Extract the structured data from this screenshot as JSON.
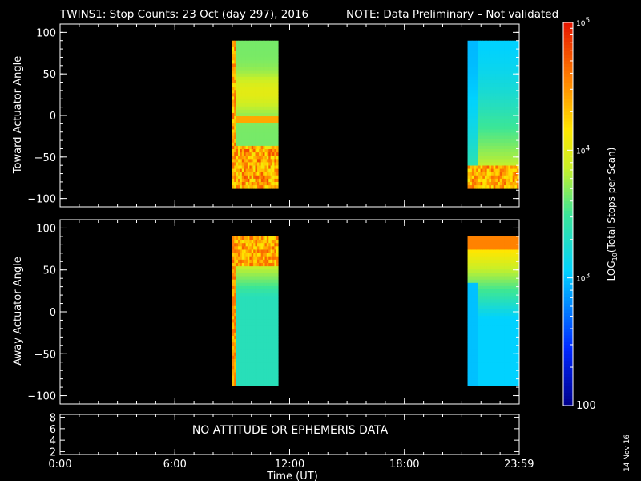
{
  "chart_data": {
    "type": "heatmap",
    "title": "TWINS1: Stop Counts: 23 Oct (day 297), 2016",
    "note": "NOTE: Data Preliminary – Not validated",
    "note_color": "#ff2020",
    "xlabel": "Time (UT)",
    "x_ticks": [
      "0:00",
      "6:00",
      "12:00",
      "18:00",
      "23:59"
    ],
    "xlim_hours": [
      0,
      24
    ],
    "panels": [
      {
        "ylabel": "Toward Actuator Angle",
        "ylim": [
          -110,
          110
        ],
        "y_ticks": [
          "100",
          "50",
          "0",
          "−50",
          "−100"
        ],
        "y_tick_values": [
          100,
          50,
          0,
          -50,
          -100
        ],
        "data_blocks": [
          {
            "t_start": 9.0,
            "t_end": 11.4,
            "angle_min": -88,
            "angle_max": 90
          },
          {
            "t_start": 21.3,
            "t_end": 23.99,
            "angle_min": -88,
            "angle_max": 90
          }
        ]
      },
      {
        "ylabel": "Away Actuator Angle",
        "ylim": [
          -110,
          110
        ],
        "y_ticks": [
          "100",
          "50",
          "0",
          "−50",
          "−100"
        ],
        "y_tick_values": [
          100,
          50,
          0,
          -50,
          -100
        ],
        "data_blocks": [
          {
            "t_start": 9.0,
            "t_end": 11.4,
            "angle_min": -88,
            "angle_max": 90
          },
          {
            "t_start": 21.3,
            "t_end": 23.99,
            "angle_min": -88,
            "angle_max": 90
          }
        ]
      }
    ],
    "ephemeris_panel": {
      "y_ticks": [
        "8",
        "6",
        "4",
        "2"
      ],
      "y_tick_values": [
        8,
        6,
        4,
        2
      ],
      "ylim": [
        1.5,
        8.5
      ],
      "message": "NO ATTITUDE OR EPHEMERIS DATA"
    },
    "colorbar": {
      "label": "LOG10(Total Stops per Scan)",
      "label_prefix": "LOG",
      "label_sub": "10",
      "label_suffix": "(Total Stops per Scan)",
      "scale": "log",
      "range": [
        100,
        100000
      ],
      "tick_labels": [
        "10^5",
        "10^4",
        "10^3",
        "100"
      ],
      "tick_values": [
        100000,
        10000,
        1000,
        100
      ]
    },
    "date_stamp": "14 Nov 16"
  }
}
